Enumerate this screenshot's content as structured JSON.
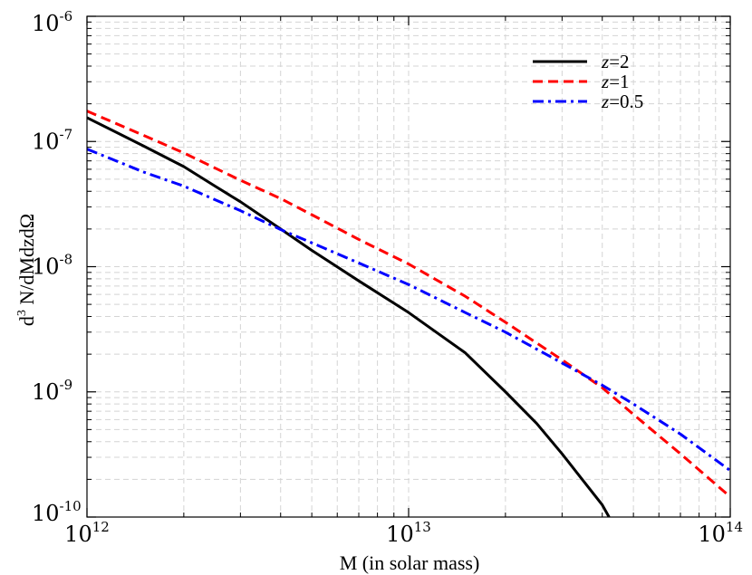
{
  "chart_data": {
    "type": "line",
    "xscale": "log",
    "yscale": "log",
    "xlim": [
      1000000000000.0,
      100000000000000.0
    ],
    "ylim": [
      1e-10,
      1e-06
    ],
    "xlabel": "M (in solar mass)",
    "ylabel": {
      "base": "d",
      "sup": "3",
      "rest": " N/dMdzdΩ"
    },
    "grid": true,
    "legend_position": "top-right",
    "x_ticks": [
      {
        "value": 1000000000000.0,
        "base": "10",
        "exp": "12"
      },
      {
        "value": 10000000000000.0,
        "base": "10",
        "exp": "13"
      },
      {
        "value": 100000000000000.0,
        "base": "10",
        "exp": "14"
      }
    ],
    "y_ticks": [
      {
        "value": 1e-06,
        "base": "10",
        "exp": "-6"
      },
      {
        "value": 1e-07,
        "base": "10",
        "exp": "-7"
      },
      {
        "value": 1e-08,
        "base": "10",
        "exp": "-8"
      },
      {
        "value": 1e-09,
        "base": "10",
        "exp": "-9"
      },
      {
        "value": 1e-10,
        "base": "10",
        "exp": "-10"
      }
    ],
    "series": [
      {
        "name": "z=2",
        "var": "z",
        "val": "=2",
        "color": "#000000",
        "dash": "solid",
        "x": [
          1000000000000.0,
          1500000000000.0,
          2000000000000.0,
          2500000000000.0,
          3000000000000.0,
          4000000000000.0,
          5000000000000.0,
          7000000000000.0,
          10000000000000.0,
          15000000000000.0,
          20000000000000.0,
          25000000000000.0,
          30000000000000.0,
          40000000000000.0,
          42000000000000.0
        ],
        "y": [
          1.55e-07,
          9.2e-08,
          6.3e-08,
          4.4e-08,
          3.3e-08,
          2e-08,
          1.35e-08,
          7.7e-09,
          4.3e-09,
          2.05e-09,
          1e-09,
          5.6e-10,
          3.2e-10,
          1.25e-10,
          1e-10
        ]
      },
      {
        "name": "z=1",
        "var": "z",
        "val": "=1",
        "color": "#ff0000",
        "dash": "dashed",
        "x": [
          1000000000000.0,
          1500000000000.0,
          2000000000000.0,
          3000000000000.0,
          4000000000000.0,
          5000000000000.0,
          7000000000000.0,
          10000000000000.0,
          15000000000000.0,
          20000000000000.0,
          30000000000000.0,
          40000000000000.0,
          50000000000000.0,
          70000000000000.0,
          100000000000000.0
        ],
        "y": [
          1.75e-07,
          1.12e-07,
          8.1e-08,
          4.9e-08,
          3.5e-08,
          2.6e-08,
          1.65e-08,
          1.05e-08,
          5.8e-09,
          3.6e-09,
          1.8e-09,
          1.08e-09,
          6.6e-10,
          3.2e-10,
          1.45e-10
        ]
      },
      {
        "name": "z=0.5",
        "var": "z",
        "val": "=0.5",
        "color": "#0000ff",
        "dash": "dashdot",
        "x": [
          1000000000000.0,
          1500000000000.0,
          2000000000000.0,
          3000000000000.0,
          4000000000000.0,
          5000000000000.0,
          7000000000000.0,
          10000000000000.0,
          15000000000000.0,
          20000000000000.0,
          30000000000000.0,
          40000000000000.0,
          50000000000000.0,
          70000000000000.0,
          100000000000000.0
        ],
        "y": [
          8.7e-08,
          5.7e-08,
          4.4e-08,
          2.8e-08,
          1.98e-08,
          1.55e-08,
          1.07e-08,
          7.2e-09,
          4.3e-09,
          3e-09,
          1.7e-09,
          1.13e-09,
          8e-10,
          4.6e-10,
          2.35e-10
        ]
      }
    ]
  }
}
